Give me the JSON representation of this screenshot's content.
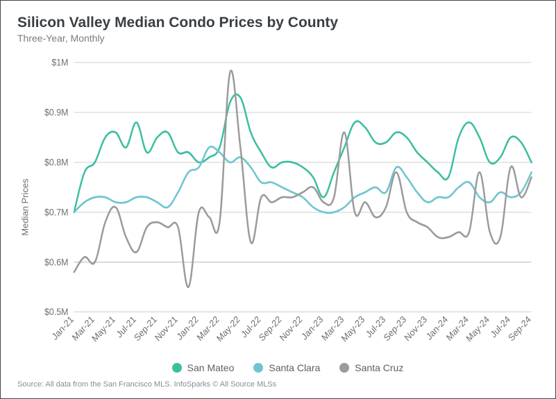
{
  "title": "Silicon Valley Median Condo Prices by County",
  "subtitle": "Three-Year, Monthly",
  "ylabel": "Median Prices",
  "source": "Source:  All data from the San Francisco MLS. InfoSparks © All Source MLSs",
  "title_fontsize": 21,
  "subtitle_fontsize": 14,
  "ylabel_fontsize": 13,
  "source_fontsize": 11,
  "tick_fontsize": 12,
  "legend_fontsize": 14,
  "colors": {
    "background": "#ffffff",
    "grid": "#cfcfcf",
    "text_muted": "#6a7075"
  },
  "chart": {
    "type": "line",
    "stroke_width": 2.4,
    "x_categories": [
      "Jan-21",
      "Feb-21",
      "Mar-21",
      "Apr-21",
      "May-21",
      "Jun-21",
      "Jul-21",
      "Aug-21",
      "Sep-21",
      "Oct-21",
      "Nov-21",
      "Dec-21",
      "Jan-22",
      "Feb-22",
      "Mar-22",
      "Apr-22",
      "May-22",
      "Jun-22",
      "Jul-22",
      "Aug-22",
      "Sep-22",
      "Oct-22",
      "Nov-22",
      "Dec-22",
      "Jan-23",
      "Feb-23",
      "Mar-23",
      "Apr-23",
      "May-23",
      "Jun-23",
      "Jul-23",
      "Aug-23",
      "Sep-23",
      "Oct-23",
      "Nov-23",
      "Dec-23",
      "Jan-24",
      "Feb-24",
      "Mar-24",
      "Apr-24",
      "May-24",
      "Jun-24",
      "Jul-24",
      "Aug-24",
      "Sep-24"
    ],
    "x_tick_labels": [
      "Jan-21",
      "Mar-21",
      "May-21",
      "Jul-21",
      "Sep-21",
      "Nov-21",
      "Jan-22",
      "Mar-22",
      "May-22",
      "Jul-22",
      "Sep-22",
      "Nov-22",
      "Jan-23",
      "Mar-23",
      "May-23",
      "Jul-23",
      "Sep-23",
      "Nov-23",
      "Jan-24",
      "Mar-24",
      "May-24",
      "Jul-24",
      "Sep-24"
    ],
    "x_tick_indices": [
      0,
      2,
      4,
      6,
      8,
      10,
      12,
      14,
      16,
      18,
      20,
      22,
      24,
      26,
      28,
      30,
      32,
      34,
      36,
      38,
      40,
      42,
      44
    ],
    "y": {
      "min": 0.5,
      "max": 1.0,
      "ticks": [
        0.5,
        0.6,
        0.7,
        0.8,
        0.9,
        1.0
      ],
      "tick_labels": [
        "$0.5M",
        "$0.6M",
        "$0.7M",
        "$0.8M",
        "$0.9M",
        "$1M"
      ]
    },
    "series": [
      {
        "name": "San Mateo",
        "color": "#3dbea0",
        "values": [
          0.7,
          0.78,
          0.8,
          0.85,
          0.86,
          0.83,
          0.88,
          0.82,
          0.85,
          0.86,
          0.82,
          0.82,
          0.8,
          0.81,
          0.83,
          0.92,
          0.93,
          0.86,
          0.82,
          0.79,
          0.8,
          0.8,
          0.79,
          0.77,
          0.73,
          0.78,
          0.83,
          0.88,
          0.87,
          0.84,
          0.84,
          0.86,
          0.85,
          0.82,
          0.8,
          0.78,
          0.77,
          0.85,
          0.88,
          0.85,
          0.8,
          0.81,
          0.85,
          0.84,
          0.8
        ]
      },
      {
        "name": "Santa Clara",
        "color": "#6fc5cf",
        "values": [
          0.7,
          0.72,
          0.73,
          0.73,
          0.72,
          0.72,
          0.73,
          0.73,
          0.72,
          0.71,
          0.74,
          0.78,
          0.79,
          0.83,
          0.82,
          0.8,
          0.81,
          0.79,
          0.76,
          0.76,
          0.75,
          0.74,
          0.73,
          0.71,
          0.7,
          0.7,
          0.71,
          0.73,
          0.74,
          0.75,
          0.74,
          0.79,
          0.77,
          0.74,
          0.72,
          0.73,
          0.73,
          0.75,
          0.76,
          0.73,
          0.72,
          0.74,
          0.73,
          0.74,
          0.78
        ]
      },
      {
        "name": "Santa Cruz",
        "color": "#9b9b9b",
        "values": [
          0.58,
          0.61,
          0.6,
          0.68,
          0.71,
          0.65,
          0.62,
          0.67,
          0.68,
          0.67,
          0.67,
          0.55,
          0.7,
          0.69,
          0.68,
          0.98,
          0.83,
          0.64,
          0.73,
          0.72,
          0.73,
          0.73,
          0.74,
          0.75,
          0.72,
          0.73,
          0.86,
          0.7,
          0.72,
          0.69,
          0.71,
          0.78,
          0.7,
          0.68,
          0.67,
          0.65,
          0.65,
          0.66,
          0.66,
          0.78,
          0.66,
          0.65,
          0.79,
          0.73,
          0.77
        ]
      }
    ]
  }
}
